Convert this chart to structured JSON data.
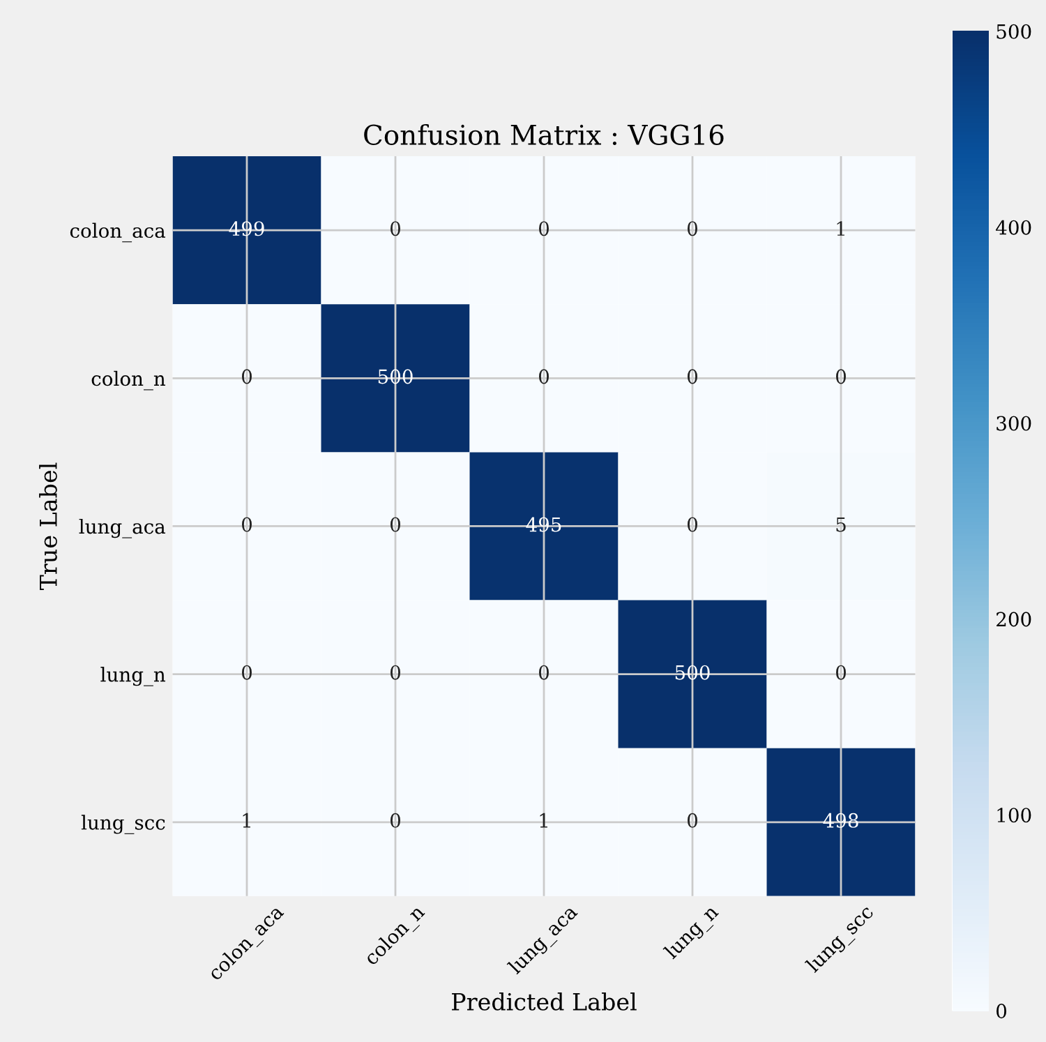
{
  "chart_data": {
    "type": "heatmap",
    "title": "Confusion Matrix : VGG16",
    "xlabel": "Predicted Label",
    "ylabel": "True Label",
    "categories": [
      "colon_aca",
      "colon_n",
      "lung_aca",
      "lung_n",
      "lung_scc"
    ],
    "y_categories": [
      "colon_aca",
      "colon_n",
      "lung_aca",
      "lung_n",
      "lung_scc"
    ],
    "cells": [
      [
        499,
        0,
        0,
        0,
        1
      ],
      [
        0,
        500,
        0,
        0,
        0
      ],
      [
        0,
        0,
        495,
        0,
        5
      ],
      [
        0,
        0,
        0,
        500,
        0
      ],
      [
        1,
        0,
        1,
        0,
        498
      ]
    ],
    "data_labels": true,
    "clim": [
      0,
      500
    ],
    "cticks": [
      0,
      100,
      200,
      300,
      400,
      500
    ],
    "grid": true
  }
}
